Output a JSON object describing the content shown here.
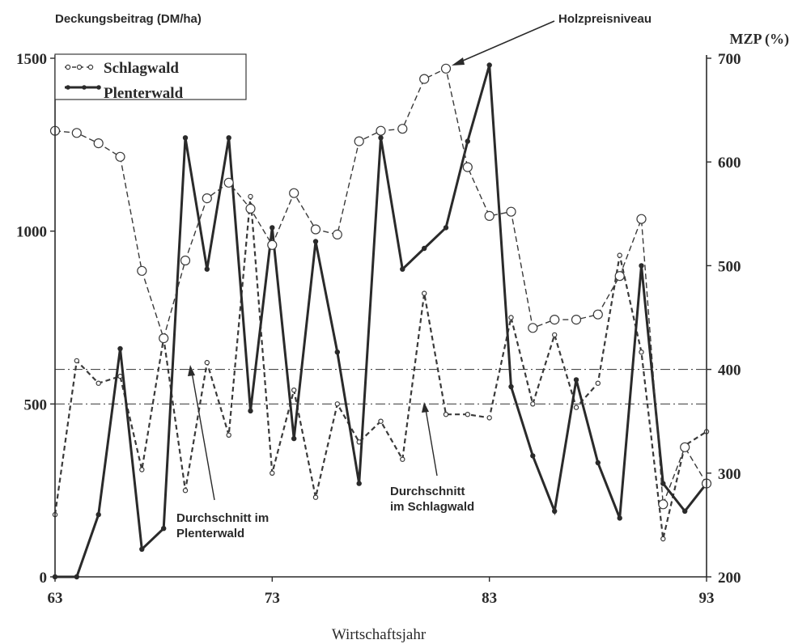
{
  "chart_data": {
    "type": "line",
    "left_axis_label": "Deckungsbeitrag (DM/ha)",
    "right_axis_label": "MZP (%)",
    "xlabel": "Wirtschaftsjahr",
    "x_ticks": [
      "63",
      "73",
      "83",
      "93"
    ],
    "y_left_ticks": [
      "0",
      "500",
      "1000",
      "1500"
    ],
    "y_right_ticks": [
      "200",
      "300",
      "400",
      "500",
      "600",
      "700"
    ],
    "xlim": [
      63,
      93
    ],
    "ylim_left": [
      0,
      1500
    ],
    "ylim_right": [
      200,
      700
    ],
    "legend": [
      {
        "name": "Schlagwald",
        "style": "dashed-hollow"
      },
      {
        "name": "Plenterwald",
        "style": "solid-filled"
      }
    ],
    "series": [
      {
        "name": "Schlagwald",
        "axis": "left",
        "style": "dashed-small-hollow",
        "color": "#3a3a3a",
        "x": [
          63,
          64,
          65,
          66,
          67,
          68,
          69,
          70,
          71,
          72,
          73,
          74,
          75,
          76,
          77,
          78,
          79,
          80,
          81,
          82,
          83,
          84,
          85,
          86,
          87,
          88,
          89,
          90,
          91,
          92,
          93
        ],
        "y": [
          180,
          625,
          560,
          580,
          310,
          690,
          250,
          620,
          410,
          1100,
          300,
          540,
          230,
          500,
          390,
          450,
          340,
          820,
          470,
          470,
          460,
          750,
          500,
          700,
          490,
          560,
          930,
          650,
          110,
          380,
          420
        ]
      },
      {
        "name": "Plenterwald",
        "axis": "left",
        "style": "solid-filled",
        "color": "#2a2a2a",
        "x": [
          63,
          64,
          65,
          66,
          67,
          68,
          69,
          70,
          71,
          72,
          73,
          74,
          75,
          76,
          77,
          78,
          79,
          80,
          81,
          82,
          83,
          84,
          85,
          86,
          87,
          88,
          89,
          90,
          91,
          92,
          93
        ],
        "y": [
          0,
          0,
          180,
          660,
          80,
          140,
          1270,
          890,
          1270,
          480,
          1010,
          400,
          970,
          650,
          270,
          1270,
          890,
          950,
          1010,
          1260,
          1480,
          550,
          350,
          190,
          570,
          330,
          170,
          900,
          270,
          190,
          270
        ]
      },
      {
        "name": "Holzpreisniveau",
        "axis": "right",
        "style": "dashed-large-hollow",
        "color": "#3a3a3a",
        "x": [
          63,
          64,
          65,
          66,
          67,
          68,
          69,
          70,
          71,
          72,
          73,
          74,
          75,
          76,
          77,
          78,
          79,
          80,
          81,
          82,
          83,
          84,
          85,
          86,
          87,
          88,
          89,
          90,
          91,
          92,
          93
        ],
        "y": [
          630,
          628,
          618,
          605,
          495,
          430,
          505,
          565,
          580,
          555,
          520,
          570,
          535,
          530,
          620,
          630,
          632,
          680,
          690,
          595,
          548,
          552,
          440,
          448,
          448,
          453,
          490,
          545,
          270,
          325,
          290
        ]
      }
    ],
    "reference_lines": [
      {
        "value": 600,
        "axis": "left",
        "style": "dash-dot"
      },
      {
        "value": 500,
        "axis": "left",
        "style": "dash-dot"
      }
    ],
    "annotations": [
      {
        "text": "Holzpreisniveau"
      },
      {
        "text": "Durchschnitt im Plenterwald"
      },
      {
        "text": "Durchschnitt im Schlagwald"
      }
    ]
  }
}
